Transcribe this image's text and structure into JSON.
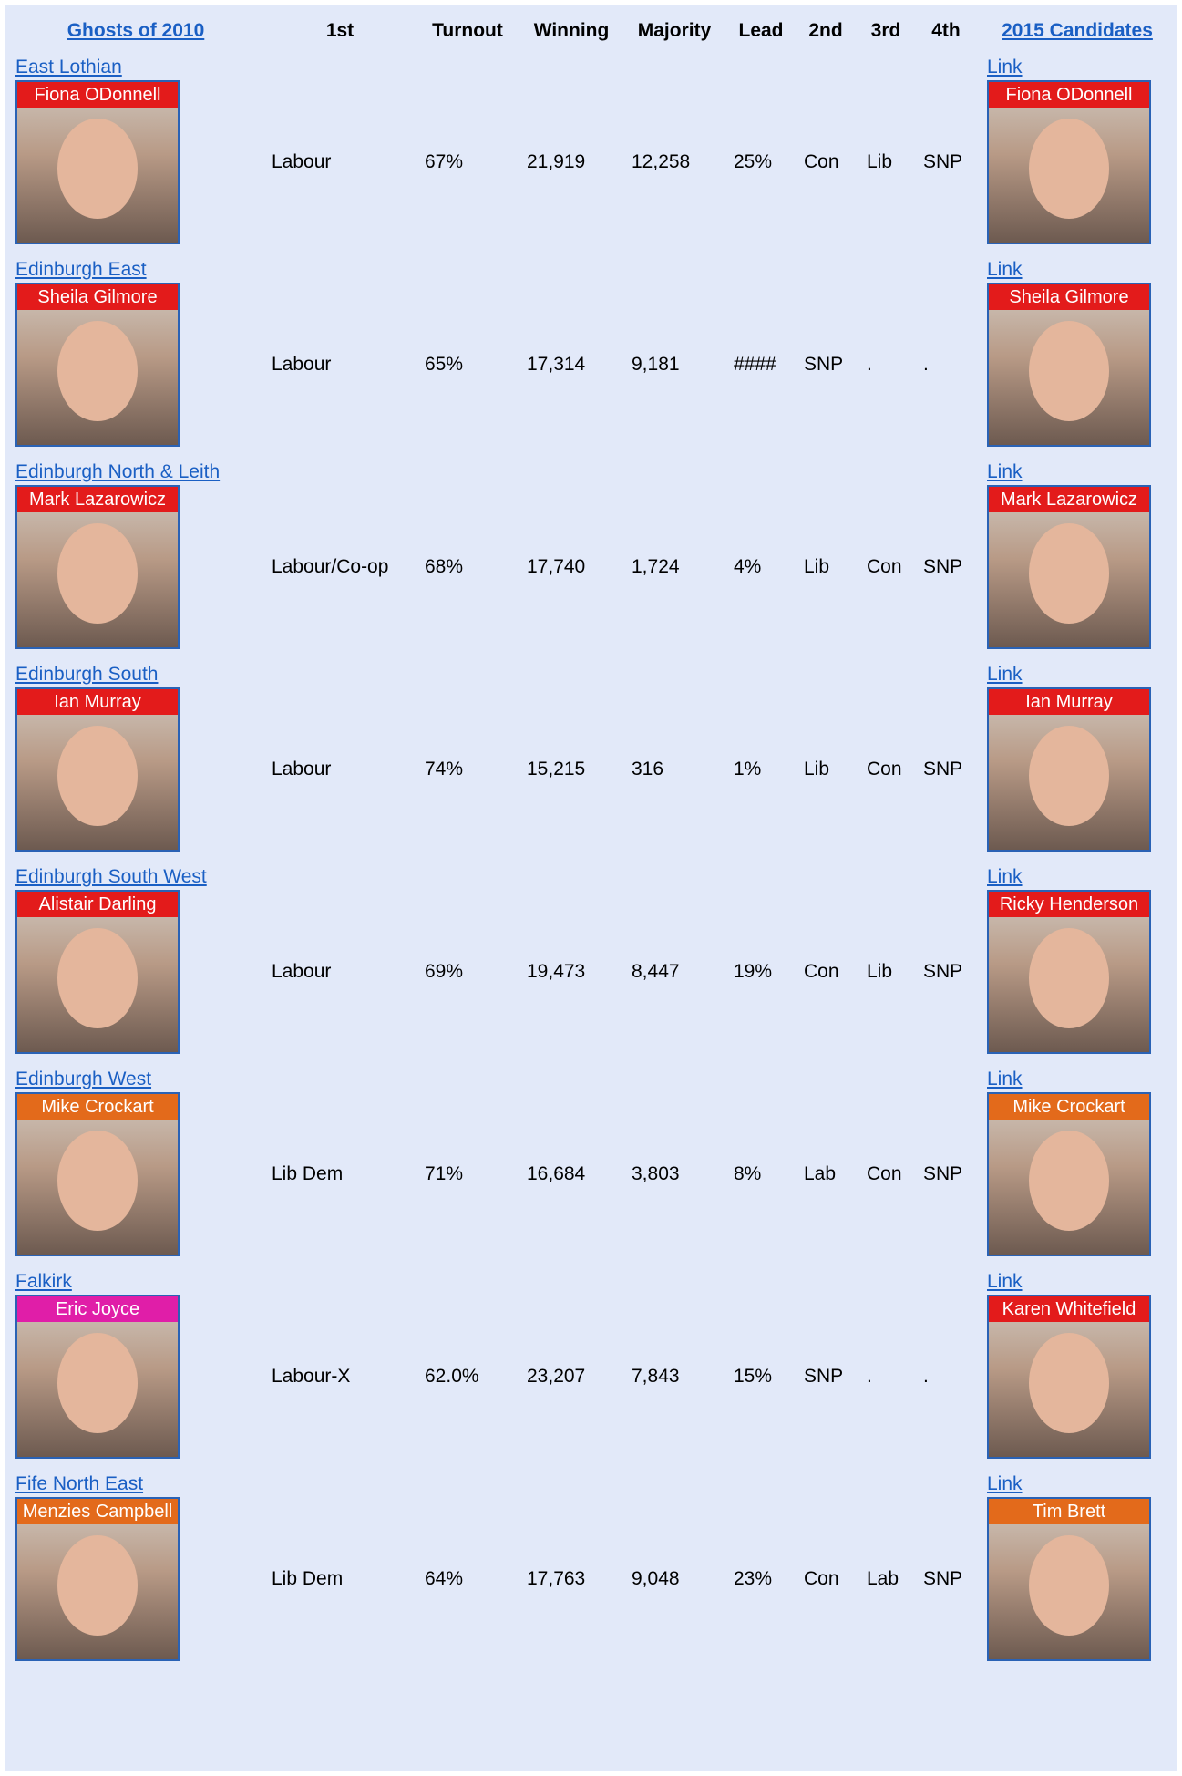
{
  "header": {
    "cells": [
      "Ghosts of 2010",
      "1st",
      "Turnout",
      "Winning",
      "Majority",
      "Lead",
      "2nd",
      "3rd",
      "4th",
      "2015 Candidates"
    ]
  },
  "rows": [
    {
      "constituency": "East Lothian",
      "ghost": "Fiona ODonnell",
      "ghost_color": "#e31b1b",
      "cells": [
        "Labour",
        "67%",
        "21,919",
        "12,258",
        "25%",
        "Con",
        "Lib",
        "SNP"
      ],
      "link": "Link",
      "candidate": "Fiona ODonnell",
      "candidate_color": "#e31b1b"
    },
    {
      "constituency": "Edinburgh East",
      "ghost": "Sheila Gilmore",
      "ghost_color": "#e31b1b",
      "cells": [
        "Labour",
        "65%",
        "17,314",
        "9,181",
        "####",
        "SNP",
        ".",
        "."
      ],
      "link": "Link",
      "candidate": "Sheila Gilmore",
      "candidate_color": "#e31b1b"
    },
    {
      "constituency": "Edinburgh North & Leith",
      "ghost": "Mark Lazarowicz",
      "ghost_color": "#e31b1b",
      "cells": [
        "Labour/Co-op",
        "68%",
        "17,740",
        "1,724",
        "4%",
        "Lib",
        "Con",
        "SNP"
      ],
      "link": "Link",
      "candidate": "Mark Lazarowicz",
      "candidate_color": "#e31b1b"
    },
    {
      "constituency": "Edinburgh South",
      "ghost": "Ian Murray",
      "ghost_color": "#e31b1b",
      "cells": [
        "Labour",
        "74%",
        "15,215",
        "316",
        "1%",
        "Lib",
        "Con",
        "SNP"
      ],
      "link": "Link",
      "candidate": "Ian Murray",
      "candidate_color": "#e31b1b"
    },
    {
      "constituency": "Edinburgh South West",
      "ghost": "Alistair Darling",
      "ghost_color": "#e31b1b",
      "cells": [
        "Labour",
        "69%",
        "19,473",
        "8,447",
        "19%",
        "Con",
        "Lib",
        "SNP"
      ],
      "link": "Link",
      "candidate": "Ricky Henderson",
      "candidate_color": "#e31b1b"
    },
    {
      "constituency": "Edinburgh West",
      "ghost": "Mike Crockart",
      "ghost_color": "#e36a1b",
      "cells": [
        "Lib Dem",
        "71%",
        "16,684",
        "3,803",
        "8%",
        "Lab",
        "Con",
        "SNP"
      ],
      "link": "Link",
      "candidate": "Mike Crockart",
      "candidate_color": "#e36a1b"
    },
    {
      "constituency": "Falkirk",
      "ghost": "Eric Joyce",
      "ghost_color": "#e01ea8",
      "cells": [
        "Labour-X",
        "62.0%",
        "23,207",
        "7,843",
        "15%",
        "SNP",
        ".",
        "."
      ],
      "link": "Link",
      "candidate": "Karen Whitefield",
      "candidate_color": "#e31b1b"
    },
    {
      "constituency": "Fife North East",
      "ghost": "Menzies Campbell",
      "ghost_color": "#e36a1b",
      "cells": [
        "Lib Dem",
        "64%",
        "17,763",
        "9,048",
        "23%",
        "Con",
        "Lab",
        "SNP"
      ],
      "link": "Link",
      "candidate": "Tim Brett",
      "candidate_color": "#e36a1b"
    }
  ]
}
